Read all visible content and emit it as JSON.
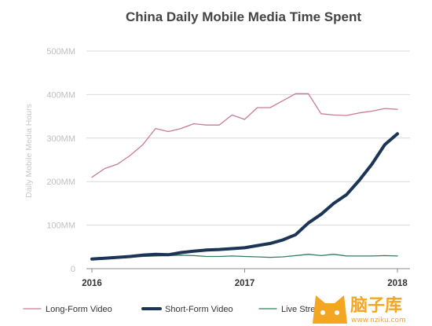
{
  "chart_data": {
    "type": "line",
    "title": "China Daily Mobile Media Time Spent",
    "ylabel": "Daily Mobile Media Hours",
    "xlabel": "",
    "y_ticks": [
      {
        "value": 0,
        "label": "0"
      },
      {
        "value": 100,
        "label": "100MM"
      },
      {
        "value": 200,
        "label": "200MM"
      },
      {
        "value": 300,
        "label": "300MM"
      },
      {
        "value": 400,
        "label": "400MM"
      },
      {
        "value": 500,
        "label": "500MM"
      }
    ],
    "ylim": [
      0,
      500
    ],
    "x_ticks": [
      {
        "value": 2016,
        "label": "2016"
      },
      {
        "value": 2017,
        "label": "2017"
      },
      {
        "value": 2018,
        "label": "2018"
      }
    ],
    "xlim": [
      2016,
      2018
    ],
    "grid": "horizontal",
    "legend_position": "bottom",
    "x": [
      2016.0,
      2016.083,
      2016.167,
      2016.25,
      2016.333,
      2016.417,
      2016.5,
      2016.583,
      2016.667,
      2016.75,
      2016.833,
      2016.917,
      2017.0,
      2017.083,
      2017.167,
      2017.25,
      2017.333,
      2017.417,
      2017.5,
      2017.583,
      2017.667,
      2017.75,
      2017.833,
      2017.917,
      2018.0
    ],
    "series": [
      {
        "name": "Long-Form Video",
        "color": "#c97b94",
        "width": 1.3,
        "values": [
          210,
          230,
          240,
          260,
          285,
          322,
          315,
          322,
          333,
          330,
          330,
          353,
          343,
          370,
          370,
          386,
          402,
          402,
          356,
          353,
          352,
          358,
          362,
          368,
          366
        ]
      },
      {
        "name": "Short-Form Video",
        "color": "#1c3556",
        "width": 4,
        "values": [
          22,
          24,
          26,
          28,
          31,
          33,
          32,
          37,
          40,
          43,
          44,
          46,
          48,
          53,
          58,
          66,
          78,
          105,
          125,
          150,
          170,
          203,
          240,
          285,
          310
        ]
      },
      {
        "name": "Live Streaming",
        "color": "#2e7d5b",
        "width": 1.3,
        "values": [
          20,
          22,
          24,
          26,
          28,
          29,
          30,
          31,
          30,
          28,
          28,
          29,
          28,
          27,
          26,
          27,
          30,
          33,
          30,
          33,
          29,
          29,
          29,
          30,
          29
        ]
      }
    ]
  },
  "watermark": {
    "text": "脑子库",
    "url": "www.nziku.com",
    "icon": "cat-face-icon"
  }
}
